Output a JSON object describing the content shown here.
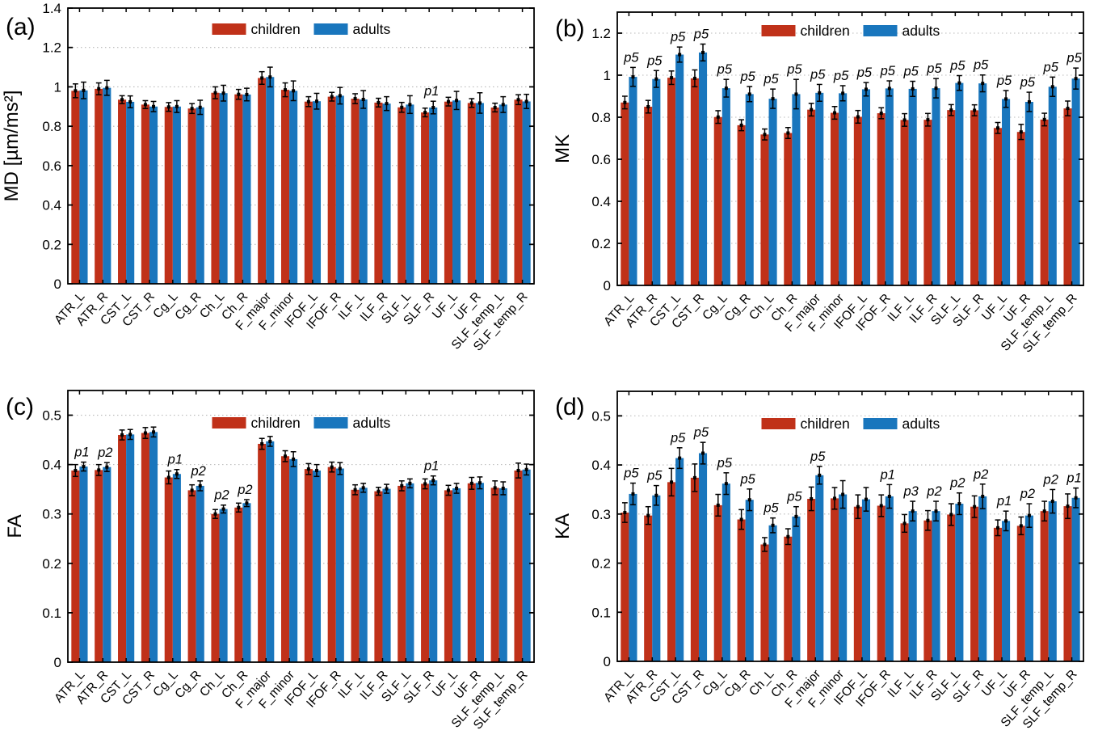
{
  "figure": {
    "background": "#ffffff"
  },
  "colors": {
    "children": "#c03119",
    "adults": "#1976bd",
    "error_bar": "#000000",
    "axis": "#000000",
    "gridline": "#b8b8b8"
  },
  "legend": {
    "children": "children",
    "adults": "adults"
  },
  "categories": [
    "ATR_L",
    "ATR_R",
    "CST_L",
    "CST_R",
    "Cg_L",
    "Cg_R",
    "Ch_L",
    "Ch_R",
    "F_major",
    "F_minor",
    "IFOF_L",
    "IFOF_R",
    "ILF_L",
    "ILF_R",
    "SLF_L",
    "SLF_R",
    "UF_L",
    "UF_R",
    "SLF_temp_L",
    "SLF_temp_R"
  ],
  "chart_data": [
    {
      "type": "bar",
      "panel_label": "(a)",
      "ylabel": "MD [µm/ms²]",
      "xlabel": "",
      "ylim": [
        0,
        1.4
      ],
      "yticks": [
        0,
        0.2,
        0.4,
        0.6,
        0.8,
        1,
        1.2,
        1.4
      ],
      "ytick_labels": [
        "0",
        "0.2",
        "0.4",
        "0.6",
        "0.8",
        "1",
        "1.2",
        "1.4"
      ],
      "grid": "dotted-horizontal",
      "legend_position": "top-center-inside",
      "series": [
        {
          "name": "children",
          "values": [
            0.98,
            0.99,
            0.935,
            0.91,
            0.898,
            0.89,
            0.97,
            0.962,
            1.045,
            0.985,
            0.925,
            0.95,
            0.94,
            0.92,
            0.896,
            0.87,
            0.925,
            0.918,
            0.895,
            0.935
          ],
          "errors": [
            0.035,
            0.03,
            0.02,
            0.02,
            0.022,
            0.025,
            0.03,
            0.025,
            0.032,
            0.035,
            0.025,
            0.022,
            0.025,
            0.022,
            0.025,
            0.022,
            0.022,
            0.022,
            0.022,
            0.025
          ]
        },
        {
          "name": "adults",
          "values": [
            0.982,
            0.995,
            0.924,
            0.9,
            0.9,
            0.896,
            0.968,
            0.961,
            1.05,
            0.98,
            0.927,
            0.955,
            0.936,
            0.915,
            0.91,
            0.895,
            0.931,
            0.918,
            0.91,
            0.926
          ],
          "errors": [
            0.042,
            0.038,
            0.03,
            0.026,
            0.03,
            0.036,
            0.04,
            0.032,
            0.05,
            0.05,
            0.04,
            0.042,
            0.045,
            0.035,
            0.045,
            0.032,
            0.046,
            0.052,
            0.04,
            0.036
          ]
        }
      ],
      "annotations": [
        "",
        "",
        "",
        "",
        "",
        "",
        "",
        "",
        "",
        "",
        "",
        "",
        "",
        "",
        "",
        "p1",
        "",
        "",
        "",
        ""
      ]
    },
    {
      "type": "bar",
      "panel_label": "(b)",
      "ylabel": "MK",
      "xlabel": "",
      "ylim": [
        0,
        1.3
      ],
      "yticks": [
        0,
        0.2,
        0.4,
        0.6,
        0.8,
        1,
        1.2
      ],
      "ytick_labels": [
        "0",
        "0.2",
        "0.4",
        "0.6",
        "0.8",
        "1",
        "1.2"
      ],
      "grid": "dotted-horizontal",
      "legend_position": "top-center-inside",
      "series": [
        {
          "name": "children",
          "values": [
            0.87,
            0.85,
            0.988,
            0.985,
            0.801,
            0.762,
            0.718,
            0.725,
            0.836,
            0.821,
            0.802,
            0.819,
            0.787,
            0.788,
            0.834,
            0.833,
            0.749,
            0.73,
            0.789,
            0.842
          ],
          "errors": [
            0.03,
            0.03,
            0.032,
            0.04,
            0.03,
            0.026,
            0.026,
            0.026,
            0.03,
            0.03,
            0.03,
            0.026,
            0.03,
            0.03,
            0.026,
            0.026,
            0.026,
            0.036,
            0.03,
            0.035
          ]
        },
        {
          "name": "adults",
          "values": [
            0.992,
            0.982,
            1.098,
            1.108,
            0.938,
            0.91,
            0.888,
            0.91,
            0.916,
            0.914,
            0.933,
            0.937,
            0.935,
            0.938,
            0.963,
            0.961,
            0.887,
            0.873,
            0.945,
            0.984
          ],
          "errors": [
            0.045,
            0.04,
            0.036,
            0.04,
            0.042,
            0.036,
            0.046,
            0.07,
            0.04,
            0.036,
            0.032,
            0.036,
            0.036,
            0.046,
            0.035,
            0.04,
            0.04,
            0.046,
            0.046,
            0.05
          ]
        }
      ],
      "annotations": [
        "p5",
        "p5",
        "p5",
        "p5",
        "p5",
        "p5",
        "p5",
        "p5",
        "p5",
        "p5",
        "p5",
        "p5",
        "p5",
        "p5",
        "p5",
        "p5",
        "p5",
        "p5",
        "p5",
        "p5"
      ]
    },
    {
      "type": "bar",
      "panel_label": "(c)",
      "ylabel": "FA",
      "xlabel": "",
      "ylim": [
        0,
        0.55
      ],
      "yticks": [
        0,
        0.1,
        0.2,
        0.3,
        0.4,
        0.5
      ],
      "ytick_labels": [
        "0",
        "0.1",
        "0.2",
        "0.3",
        "0.4",
        "0.5"
      ],
      "grid": "dotted-horizontal",
      "legend_position": "top-center-inside",
      "series": [
        {
          "name": "children",
          "values": [
            0.388,
            0.389,
            0.46,
            0.464,
            0.374,
            0.348,
            0.3,
            0.313,
            0.442,
            0.417,
            0.391,
            0.395,
            0.349,
            0.346,
            0.357,
            0.361,
            0.348,
            0.362,
            0.353,
            0.388
          ],
          "errors": [
            0.012,
            0.011,
            0.01,
            0.011,
            0.013,
            0.011,
            0.009,
            0.009,
            0.011,
            0.011,
            0.011,
            0.01,
            0.01,
            0.008,
            0.01,
            0.01,
            0.01,
            0.012,
            0.014,
            0.015
          ]
        },
        {
          "name": "adults",
          "values": [
            0.396,
            0.395,
            0.461,
            0.466,
            0.381,
            0.357,
            0.31,
            0.322,
            0.447,
            0.411,
            0.388,
            0.392,
            0.353,
            0.351,
            0.362,
            0.368,
            0.352,
            0.363,
            0.352,
            0.39
          ],
          "errors": [
            0.009,
            0.009,
            0.01,
            0.01,
            0.009,
            0.01,
            0.008,
            0.007,
            0.01,
            0.015,
            0.012,
            0.012,
            0.009,
            0.009,
            0.009,
            0.009,
            0.01,
            0.012,
            0.013,
            0.011
          ]
        }
      ],
      "annotations": [
        "p1",
        "p2",
        "",
        "",
        "p1",
        "p2",
        "p2",
        "p2",
        "",
        "",
        "",
        "",
        "",
        "",
        "",
        "p1",
        "",
        "",
        "",
        ""
      ]
    },
    {
      "type": "bar",
      "panel_label": "(d)",
      "ylabel": "KA",
      "xlabel": "",
      "ylim": [
        0,
        0.55
      ],
      "yticks": [
        0,
        0.1,
        0.2,
        0.3,
        0.4,
        0.5
      ],
      "ytick_labels": [
        "0",
        "0.1",
        "0.2",
        "0.3",
        "0.4",
        "0.5"
      ],
      "grid": "dotted-horizontal",
      "legend_position": "top-center-inside",
      "series": [
        {
          "name": "children",
          "values": [
            0.303,
            0.297,
            0.365,
            0.374,
            0.318,
            0.289,
            0.238,
            0.254,
            0.331,
            0.332,
            0.315,
            0.317,
            0.281,
            0.287,
            0.299,
            0.315,
            0.272,
            0.276,
            0.306,
            0.316
          ],
          "errors": [
            0.02,
            0.018,
            0.028,
            0.028,
            0.022,
            0.02,
            0.014,
            0.016,
            0.024,
            0.022,
            0.024,
            0.022,
            0.018,
            0.02,
            0.022,
            0.022,
            0.016,
            0.018,
            0.02,
            0.025
          ]
        },
        {
          "name": "adults",
          "values": [
            0.341,
            0.338,
            0.414,
            0.424,
            0.362,
            0.329,
            0.277,
            0.295,
            0.379,
            0.34,
            0.33,
            0.336,
            0.306,
            0.306,
            0.321,
            0.336,
            0.286,
            0.297,
            0.326,
            0.333
          ],
          "errors": [
            0.022,
            0.02,
            0.021,
            0.022,
            0.022,
            0.022,
            0.015,
            0.02,
            0.018,
            0.028,
            0.024,
            0.024,
            0.02,
            0.02,
            0.022,
            0.025,
            0.02,
            0.024,
            0.024,
            0.02
          ]
        }
      ],
      "annotations": [
        "p5",
        "p5",
        "p5",
        "p5",
        "p5",
        "p5",
        "p5",
        "p5",
        "p5",
        "",
        "",
        "p1",
        "p3",
        "p2",
        "p2",
        "p2",
        "p1",
        "p2",
        "p2",
        "p1"
      ]
    }
  ]
}
